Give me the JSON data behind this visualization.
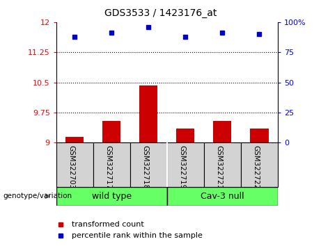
{
  "title": "GDS3533 / 1423176_at",
  "samples": [
    "GSM322703",
    "GSM322717",
    "GSM322718",
    "GSM322719",
    "GSM322721",
    "GSM322722"
  ],
  "transformed_counts": [
    9.15,
    9.55,
    10.42,
    9.35,
    9.55,
    9.35
  ],
  "percentile_ranks": [
    88,
    91,
    96,
    88,
    91,
    90
  ],
  "ylim_left": [
    9,
    12
  ],
  "ylim_right": [
    0,
    100
  ],
  "yticks_left": [
    9,
    9.75,
    10.5,
    11.25,
    12
  ],
  "yticks_right": [
    0,
    25,
    50,
    75,
    100
  ],
  "ytick_labels_left": [
    "9",
    "9.75",
    "10.5",
    "11.25",
    "12"
  ],
  "ytick_labels_right": [
    "0",
    "25",
    "50",
    "75",
    "100%"
  ],
  "bar_color": "#cc0000",
  "dot_color": "#0000cc",
  "n_wild_type": 3,
  "wild_type_label": "wild type",
  "cav3_null_label": "Cav-3 null",
  "genotype_label": "genotype/variation",
  "legend_bar_label": "transformed count",
  "legend_dot_label": "percentile rank within the sample",
  "sample_box_color": "#d3d3d3",
  "wt_box_color": "#66ff66",
  "cav_box_color": "#66ff66",
  "bar_width": 0.5
}
